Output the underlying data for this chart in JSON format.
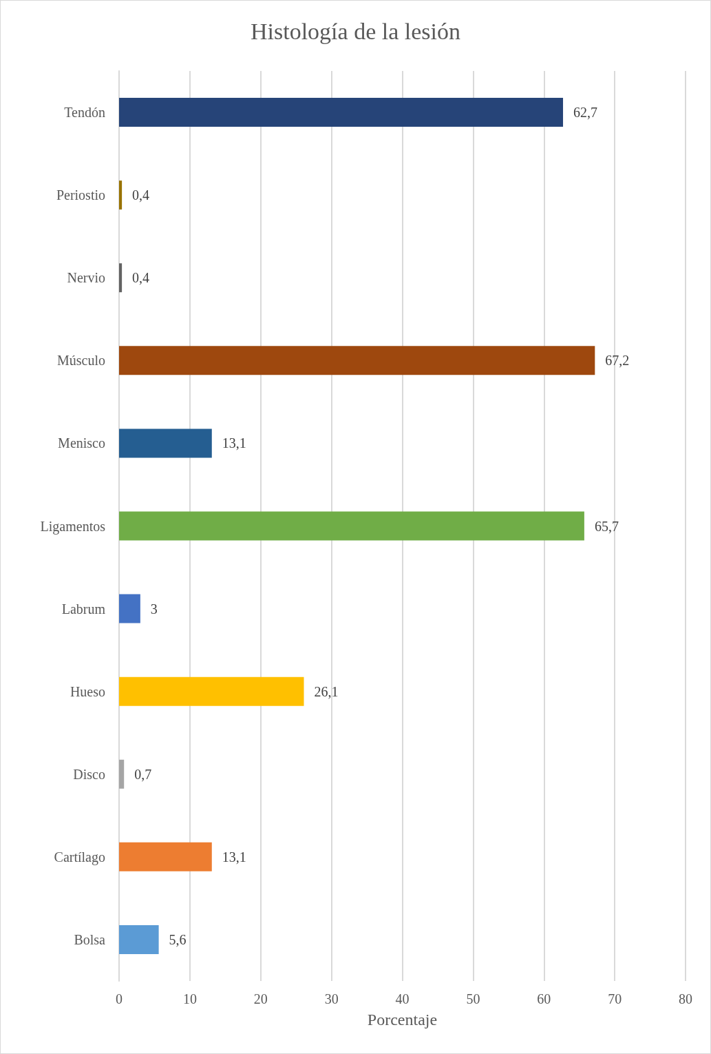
{
  "chart_data": {
    "type": "bar",
    "orientation": "horizontal",
    "title": "Histología de la lesión",
    "xlabel": "Porcentaje",
    "categories": [
      "Tendón",
      "Periostio",
      "Nervio",
      "Músculo",
      "Menisco",
      "Ligamentos",
      "Labrum",
      "Hueso",
      "Disco",
      "Cartílago",
      "Bolsa"
    ],
    "values": [
      62.7,
      0.4,
      0.4,
      67.2,
      13.1,
      65.7,
      3,
      26.1,
      0.7,
      13.1,
      5.6
    ],
    "value_labels": [
      "62,7",
      "0,4",
      "0,4",
      "67,2",
      "13,1",
      "65,7",
      "3",
      "26,1",
      "0,7",
      "13,1",
      "5,6"
    ],
    "colors": [
      "#264478",
      "#997300",
      "#636363",
      "#9e480e",
      "#255e91",
      "#70ad47",
      "#4472c4",
      "#ffc000",
      "#a5a5a5",
      "#ed7d31",
      "#5b9bd5"
    ],
    "xlim": [
      0,
      80
    ],
    "xticks": [
      0,
      10,
      20,
      30,
      40,
      50,
      60,
      70,
      80
    ],
    "grid": "x"
  }
}
